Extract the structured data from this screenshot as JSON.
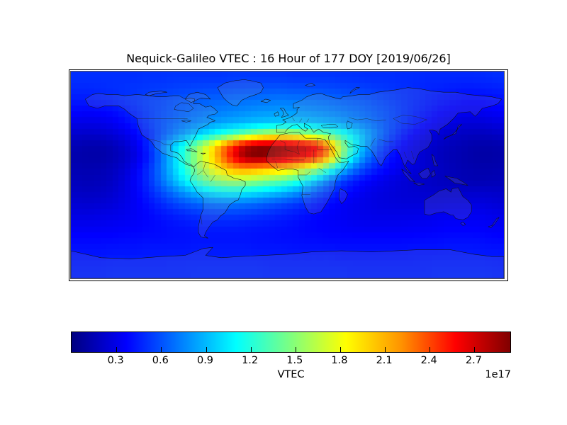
{
  "chart_data": {
    "type": "heatmap",
    "title": "Nequick-Galileo VTEC : 16 Hour of 177 DOY [2019/06/26]",
    "colormap": "jet",
    "projection": "equirectangular world map with coastlines",
    "lon_range": [
      -180,
      180
    ],
    "lat_range": [
      -90,
      90
    ],
    "grid": {
      "rows": 18,
      "cols": 36,
      "lat_start": 85,
      "lat_step": -10,
      "lon_start": -175,
      "lon_step": 10
    },
    "colorbar": {
      "label": "VTEC",
      "offset_text": "1e17",
      "orientation": "horizontal",
      "vmin": 0,
      "vmax": 2.95,
      "ticks": [
        0.3,
        0.6,
        0.9,
        1.2,
        1.5,
        1.8,
        2.1,
        2.4,
        2.7
      ]
    },
    "values_units": "1e17",
    "values": [
      [
        0.5,
        0.5,
        0.5,
        0.5,
        0.5,
        0.5,
        0.51,
        0.51,
        0.52,
        0.52,
        0.52,
        0.52,
        0.52,
        0.53,
        0.53,
        0.53,
        0.53,
        0.53,
        0.52,
        0.52,
        0.52,
        0.52,
        0.51,
        0.51,
        0.5,
        0.5,
        0.5,
        0.49,
        0.49,
        0.48,
        0.48,
        0.48,
        0.48,
        0.48,
        0.49,
        0.5
      ],
      [
        0.48,
        0.48,
        0.49,
        0.5,
        0.51,
        0.52,
        0.53,
        0.54,
        0.55,
        0.56,
        0.57,
        0.58,
        0.58,
        0.59,
        0.6,
        0.6,
        0.61,
        0.61,
        0.6,
        0.6,
        0.59,
        0.58,
        0.57,
        0.56,
        0.55,
        0.53,
        0.52,
        0.5,
        0.49,
        0.47,
        0.46,
        0.45,
        0.44,
        0.44,
        0.45,
        0.46
      ],
      [
        0.44,
        0.44,
        0.45,
        0.47,
        0.5,
        0.52,
        0.55,
        0.57,
        0.6,
        0.62,
        0.63,
        0.65,
        0.66,
        0.68,
        0.69,
        0.7,
        0.71,
        0.72,
        0.71,
        0.7,
        0.69,
        0.67,
        0.65,
        0.63,
        0.61,
        0.58,
        0.55,
        0.52,
        0.49,
        0.46,
        0.43,
        0.41,
        0.39,
        0.38,
        0.39,
        0.41
      ],
      [
        0.38,
        0.37,
        0.38,
        0.4,
        0.44,
        0.49,
        0.54,
        0.58,
        0.62,
        0.65,
        0.68,
        0.71,
        0.73,
        0.75,
        0.77,
        0.79,
        0.8,
        0.81,
        0.8,
        0.79,
        0.77,
        0.75,
        0.72,
        0.69,
        0.66,
        0.62,
        0.58,
        0.53,
        0.48,
        0.43,
        0.39,
        0.36,
        0.34,
        0.33,
        0.34,
        0.36
      ],
      [
        0.3,
        0.29,
        0.3,
        0.33,
        0.38,
        0.45,
        0.53,
        0.6,
        0.66,
        0.71,
        0.76,
        0.8,
        0.84,
        0.87,
        0.9,
        0.93,
        0.95,
        0.96,
        0.95,
        0.93,
        0.9,
        0.87,
        0.83,
        0.78,
        0.72,
        0.66,
        0.59,
        0.52,
        0.45,
        0.39,
        0.33,
        0.29,
        0.26,
        0.25,
        0.26,
        0.28
      ],
      [
        0.22,
        0.21,
        0.22,
        0.25,
        0.3,
        0.38,
        0.48,
        0.6,
        0.72,
        0.84,
        0.96,
        1.08,
        1.2,
        1.32,
        1.45,
        1.58,
        1.68,
        1.72,
        1.68,
        1.6,
        1.5,
        1.38,
        1.22,
        1.05,
        0.88,
        0.72,
        0.58,
        0.46,
        0.37,
        0.3,
        0.25,
        0.21,
        0.19,
        0.18,
        0.18,
        0.2
      ],
      [
        0.15,
        0.13,
        0.13,
        0.16,
        0.22,
        0.32,
        0.48,
        0.7,
        0.95,
        1.2,
        1.5,
        1.8,
        2.15,
        2.5,
        2.8,
        2.92,
        2.92,
        2.88,
        2.82,
        2.75,
        2.6,
        2.2,
        1.6,
        1.15,
        0.85,
        0.62,
        0.48,
        0.38,
        0.3,
        0.24,
        0.2,
        0.17,
        0.15,
        0.13,
        0.12,
        0.13
      ],
      [
        0.13,
        0.12,
        0.12,
        0.15,
        0.2,
        0.3,
        0.45,
        0.68,
        0.95,
        1.25,
        1.55,
        1.85,
        2.2,
        2.6,
        2.88,
        2.95,
        2.9,
        2.8,
        2.7,
        2.6,
        2.45,
        2.1,
        1.5,
        1.05,
        0.75,
        0.55,
        0.42,
        0.34,
        0.28,
        0.23,
        0.19,
        0.16,
        0.14,
        0.12,
        0.11,
        0.12
      ],
      [
        0.15,
        0.14,
        0.15,
        0.18,
        0.24,
        0.35,
        0.5,
        0.7,
        0.95,
        1.2,
        1.5,
        1.75,
        1.95,
        2.1,
        2.15,
        2.1,
        2.05,
        2.0,
        1.9,
        1.75,
        1.55,
        1.25,
        0.95,
        0.72,
        0.55,
        0.44,
        0.37,
        0.31,
        0.27,
        0.23,
        0.2,
        0.17,
        0.15,
        0.14,
        0.13,
        0.14
      ],
      [
        0.17,
        0.16,
        0.17,
        0.2,
        0.27,
        0.37,
        0.5,
        0.68,
        0.88,
        1.08,
        1.28,
        1.45,
        1.55,
        1.6,
        1.58,
        1.52,
        1.45,
        1.38,
        1.28,
        1.12,
        0.92,
        0.72,
        0.56,
        0.45,
        0.38,
        0.33,
        0.29,
        0.26,
        0.23,
        0.21,
        0.19,
        0.17,
        0.16,
        0.15,
        0.15,
        0.16
      ],
      [
        0.2,
        0.19,
        0.2,
        0.23,
        0.28,
        0.36,
        0.46,
        0.58,
        0.7,
        0.82,
        0.93,
        1.02,
        1.08,
        1.1,
        1.08,
        1.04,
        0.98,
        0.92,
        0.84,
        0.74,
        0.62,
        0.52,
        0.43,
        0.37,
        0.32,
        0.29,
        0.27,
        0.25,
        0.24,
        0.23,
        0.22,
        0.22,
        0.22,
        0.22,
        0.22,
        0.21
      ],
      [
        0.24,
        0.23,
        0.24,
        0.26,
        0.3,
        0.35,
        0.41,
        0.48,
        0.55,
        0.61,
        0.66,
        0.7,
        0.72,
        0.72,
        0.7,
        0.67,
        0.63,
        0.59,
        0.55,
        0.5,
        0.44,
        0.39,
        0.35,
        0.32,
        0.3,
        0.28,
        0.27,
        0.26,
        0.26,
        0.26,
        0.26,
        0.27,
        0.27,
        0.28,
        0.27,
        0.25
      ],
      [
        0.28,
        0.28,
        0.29,
        0.3,
        0.32,
        0.35,
        0.38,
        0.42,
        0.45,
        0.48,
        0.51,
        0.53,
        0.54,
        0.54,
        0.53,
        0.51,
        0.49,
        0.46,
        0.44,
        0.41,
        0.38,
        0.36,
        0.34,
        0.32,
        0.31,
        0.3,
        0.3,
        0.3,
        0.3,
        0.31,
        0.32,
        0.33,
        0.33,
        0.33,
        0.32,
        0.3
      ],
      [
        0.33,
        0.33,
        0.33,
        0.34,
        0.35,
        0.36,
        0.38,
        0.39,
        0.41,
        0.42,
        0.44,
        0.45,
        0.45,
        0.45,
        0.44,
        0.43,
        0.42,
        0.41,
        0.4,
        0.38,
        0.37,
        0.36,
        0.35,
        0.34,
        0.33,
        0.33,
        0.33,
        0.33,
        0.34,
        0.34,
        0.35,
        0.36,
        0.36,
        0.36,
        0.35,
        0.34
      ],
      [
        0.38,
        0.38,
        0.38,
        0.38,
        0.39,
        0.39,
        0.4,
        0.4,
        0.41,
        0.41,
        0.42,
        0.42,
        0.42,
        0.42,
        0.42,
        0.41,
        0.41,
        0.4,
        0.4,
        0.39,
        0.39,
        0.38,
        0.38,
        0.38,
        0.38,
        0.38,
        0.38,
        0.38,
        0.38,
        0.39,
        0.39,
        0.4,
        0.4,
        0.4,
        0.39,
        0.38
      ],
      [
        0.41,
        0.41,
        0.41,
        0.42,
        0.42,
        0.42,
        0.43,
        0.43,
        0.43,
        0.43,
        0.44,
        0.44,
        0.44,
        0.44,
        0.44,
        0.43,
        0.43,
        0.43,
        0.42,
        0.42,
        0.42,
        0.42,
        0.41,
        0.41,
        0.41,
        0.41,
        0.41,
        0.41,
        0.42,
        0.42,
        0.42,
        0.43,
        0.43,
        0.43,
        0.42,
        0.42
      ],
      [
        0.44,
        0.44,
        0.44,
        0.45,
        0.45,
        0.45,
        0.45,
        0.45,
        0.46,
        0.46,
        0.46,
        0.46,
        0.46,
        0.46,
        0.46,
        0.46,
        0.45,
        0.45,
        0.45,
        0.45,
        0.45,
        0.45,
        0.44,
        0.44,
        0.44,
        0.44,
        0.44,
        0.44,
        0.44,
        0.45,
        0.45,
        0.45,
        0.45,
        0.45,
        0.45,
        0.44
      ],
      [
        0.46,
        0.46,
        0.46,
        0.47,
        0.47,
        0.47,
        0.47,
        0.47,
        0.47,
        0.47,
        0.48,
        0.48,
        0.48,
        0.48,
        0.48,
        0.48,
        0.47,
        0.47,
        0.47,
        0.47,
        0.47,
        0.47,
        0.47,
        0.46,
        0.46,
        0.46,
        0.46,
        0.46,
        0.46,
        0.46,
        0.47,
        0.47,
        0.47,
        0.47,
        0.47,
        0.46
      ]
    ]
  }
}
